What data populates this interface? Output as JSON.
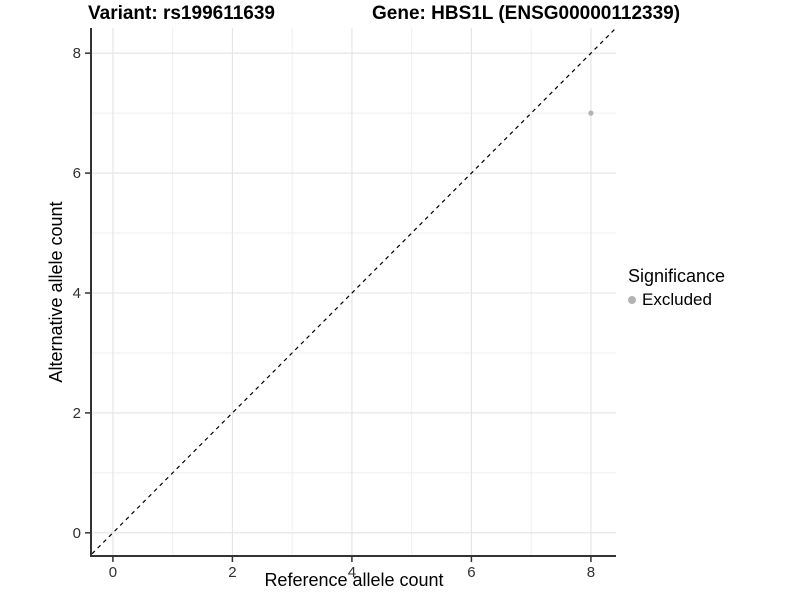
{
  "chart_data": {
    "type": "scatter",
    "title_left": "Variant: rs199611639",
    "title_right": "Gene: HBS1L (ENSG00000112339)",
    "xlabel": "Reference allele count",
    "ylabel": "Alternative allele count",
    "xlim": [
      -0.35,
      8.42
    ],
    "ylim": [
      -0.37,
      8.42
    ],
    "x_ticks": [
      0,
      2,
      4,
      6,
      8
    ],
    "y_ticks": [
      0,
      2,
      4,
      6,
      8
    ],
    "x_minor_ticks": [
      1,
      3,
      5,
      7
    ],
    "y_minor_ticks": [
      1,
      3,
      5,
      7
    ],
    "grid": true,
    "identity_line": {
      "style": "dashed",
      "color": "#000000",
      "from": [
        -0.35,
        -0.35
      ],
      "to": [
        8.42,
        8.42
      ]
    },
    "series": [
      {
        "name": "Excluded",
        "color": "#b3b3b3",
        "points": [
          {
            "x": 8,
            "y": 7
          }
        ]
      }
    ],
    "legend": {
      "position": "right",
      "title": "Significance",
      "items": [
        {
          "label": "Excluded",
          "color": "#b3b3b3"
        }
      ]
    },
    "colors": {
      "background": "#ffffff",
      "grid_major": "#e4e4e4",
      "grid_minor": "#efefef",
      "axis_line": "#333333",
      "tick_label": "#303030",
      "point": "#b3b3b3"
    }
  }
}
